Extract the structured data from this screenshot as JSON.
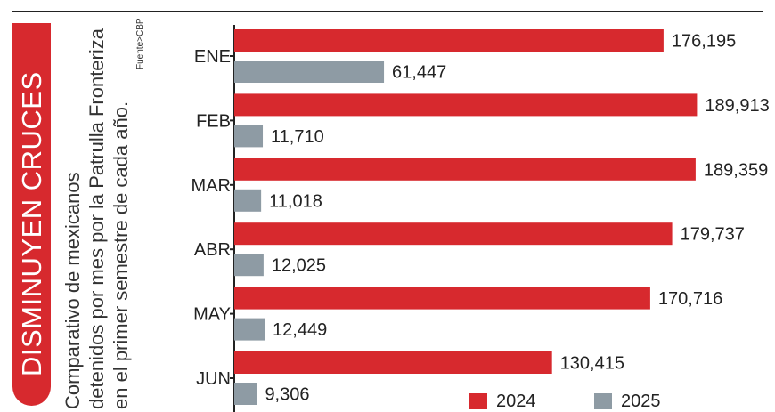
{
  "title": "DISMINUYEN CRUCES",
  "subtitle_lines": [
    "Comparativo de mexicanos",
    "detenidos por mes por la Patrulla Fronteriza",
    "en el primer semestre de cada año."
  ],
  "source": "Fuente>CBP",
  "colors": {
    "2024": "#d7292e",
    "2025": "#8e9ba4",
    "title_bg": "#d7292e"
  },
  "chart_data": {
    "type": "bar",
    "orientation": "horizontal",
    "title": "DISMINUYEN CRUCES",
    "subtitle": "Comparativo de mexicanos detenidos por mes por la Patrulla Fronteriza en el primer semestre de cada año.",
    "source": "Fuente>CBP",
    "categories": [
      "ENE",
      "FEB",
      "MAR",
      "ABR",
      "MAY",
      "JUN"
    ],
    "series": [
      {
        "name": "2024",
        "values": [
          176195,
          189913,
          189359,
          179737,
          170716,
          130415
        ],
        "labels": [
          "176,195",
          "189,913",
          "189,359",
          "179,737",
          "170,716",
          "130,415"
        ]
      },
      {
        "name": "2025",
        "values": [
          61447,
          11710,
          11018,
          12025,
          12449,
          9306
        ],
        "labels": [
          "61,447",
          "11,710",
          "11,018",
          "12,025",
          "12,449",
          "9,306"
        ]
      }
    ],
    "xlim": [
      0,
      200000
    ],
    "legend": {
      "position": "bottom-right",
      "entries": [
        "2024",
        "2025"
      ]
    },
    "grid": false
  }
}
